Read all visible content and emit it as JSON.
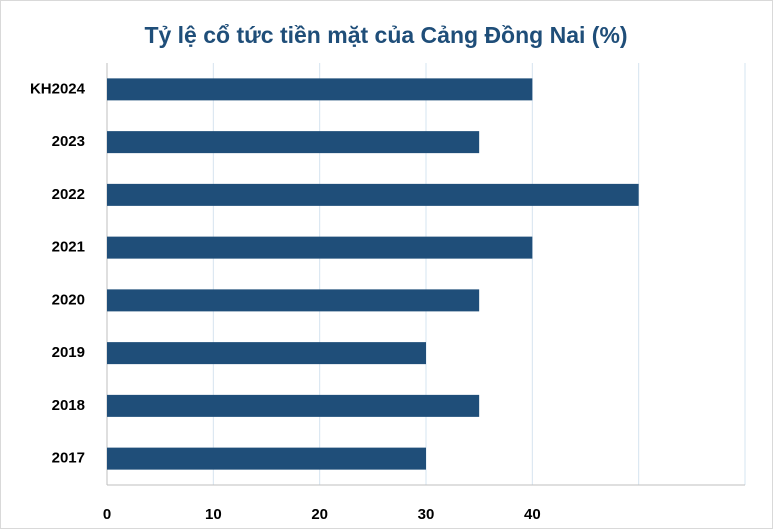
{
  "chart_data": {
    "type": "bar",
    "orientation": "horizontal",
    "title": "Tỷ lệ cổ tức tiền mặt của Cảng Đồng Nai (%)",
    "categories": [
      "KH2024",
      "2023",
      "2022",
      "2021",
      "2020",
      "2019",
      "2018",
      "2017"
    ],
    "values": [
      40,
      35,
      50,
      40,
      35,
      30,
      35,
      30
    ],
    "color": "#1f4e79",
    "xlim": [
      0,
      60
    ],
    "xticks": [
      0,
      10,
      20,
      30,
      40
    ],
    "xgrid": [
      10,
      20,
      30,
      40,
      50,
      60
    ],
    "grid": true
  }
}
